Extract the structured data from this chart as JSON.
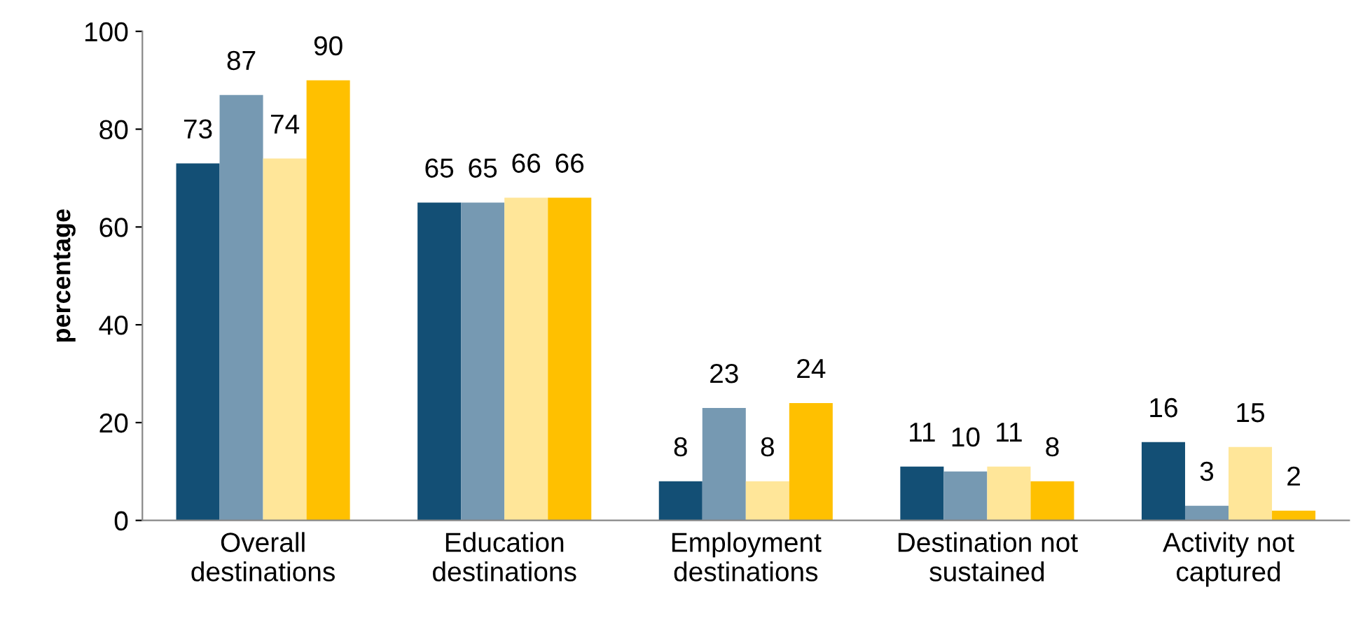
{
  "chart_data": {
    "type": "bar",
    "ylabel": "percentage",
    "categories": [
      "Overall\ndestinations",
      "Education\ndestinations",
      "Employment\ndestinations",
      "Destination not\nsustained",
      "Activity not\ncaptured"
    ],
    "series": [
      {
        "color": "#134f75",
        "values": [
          73,
          65,
          8,
          11,
          16
        ]
      },
      {
        "color": "#7699b2",
        "values": [
          87,
          65,
          23,
          10,
          3
        ]
      },
      {
        "color": "#ffe699",
        "values": [
          74,
          66,
          8,
          11,
          15
        ]
      },
      {
        "color": "#ffc000",
        "values": [
          90,
          66,
          24,
          8,
          2
        ]
      }
    ],
    "ylim": [
      0,
      100
    ],
    "yticks": [
      0,
      20,
      40,
      60,
      80,
      100
    ],
    "grid": false,
    "data_labels": true
  }
}
